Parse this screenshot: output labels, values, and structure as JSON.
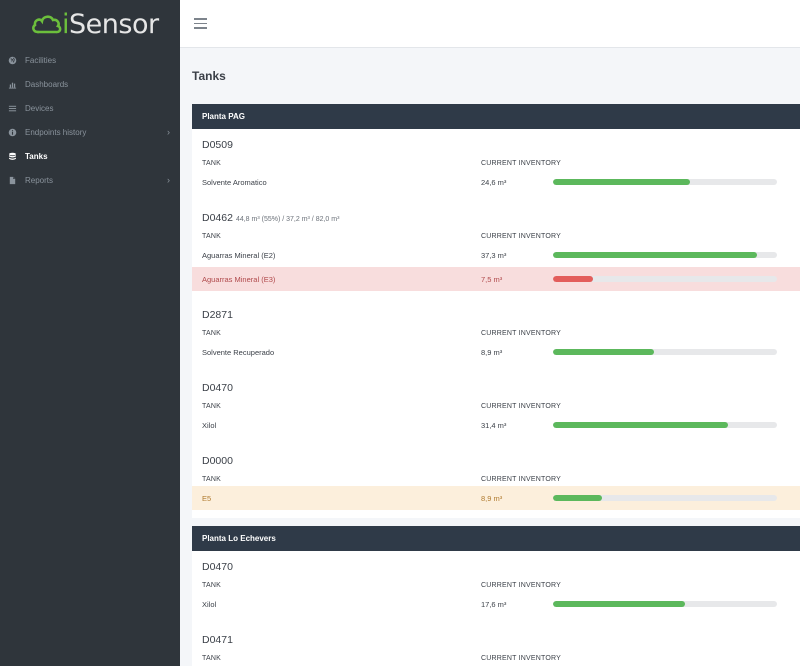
{
  "brand": {
    "i": "i",
    "rest": "Sensor",
    "accent": "#6cbf3c"
  },
  "sidebar": {
    "items": [
      {
        "label": "Facilities",
        "icon": "globe-icon",
        "chevron": false,
        "active": false
      },
      {
        "label": "Dashboards",
        "icon": "bar-chart-icon",
        "chevron": false,
        "active": false
      },
      {
        "label": "Devices",
        "icon": "list-icon",
        "chevron": false,
        "active": false
      },
      {
        "label": "Endpoints history",
        "icon": "info-circle-icon",
        "chevron": true,
        "active": false
      },
      {
        "label": "Tanks",
        "icon": "database-icon",
        "chevron": false,
        "active": true
      },
      {
        "label": "Reports",
        "icon": "file-icon",
        "chevron": true,
        "active": false
      }
    ]
  },
  "page": {
    "title": "Tanks"
  },
  "columns": {
    "tank": "TANK",
    "inventory": "CURRENT INVENTORY"
  },
  "plants": [
    {
      "name": "Planta PAG",
      "devices": [
        {
          "id": "D0509",
          "stats": "",
          "rows": [
            {
              "tank": "Solvente Aromatico",
              "inventory": "24,6 m³",
              "level": 0.61,
              "status": "normal"
            }
          ]
        },
        {
          "id": "D0462",
          "stats": "44,8 m³ (55%) / 37,2 m³ / 82,0 m³",
          "rows": [
            {
              "tank": "Aguarras Mineral (E2)",
              "inventory": "37,3 m³",
              "level": 0.91,
              "status": "normal"
            },
            {
              "tank": "Aguarras Mineral (E3)",
              "inventory": "7,5 m³",
              "level": 0.18,
              "status": "danger"
            }
          ]
        },
        {
          "id": "D2871",
          "stats": "",
          "rows": [
            {
              "tank": "Solvente Recuperado",
              "inventory": "8,9 m³",
              "level": 0.45,
              "status": "normal"
            }
          ]
        },
        {
          "id": "D0470",
          "stats": "",
          "rows": [
            {
              "tank": "Xilol",
              "inventory": "31,4 m³",
              "level": 0.78,
              "status": "normal"
            }
          ]
        },
        {
          "id": "D0000",
          "stats": "",
          "rows": [
            {
              "tank": "E5",
              "inventory": "8,9 m³",
              "level": 0.22,
              "status": "warning"
            }
          ]
        }
      ]
    },
    {
      "name": "Planta Lo Echevers",
      "devices": [
        {
          "id": "D0470",
          "stats": "",
          "rows": [
            {
              "tank": "Xilol",
              "inventory": "17,6 m³",
              "level": 0.59,
              "status": "normal"
            }
          ]
        },
        {
          "id": "D0471",
          "stats": "",
          "rows": []
        }
      ]
    }
  ]
}
